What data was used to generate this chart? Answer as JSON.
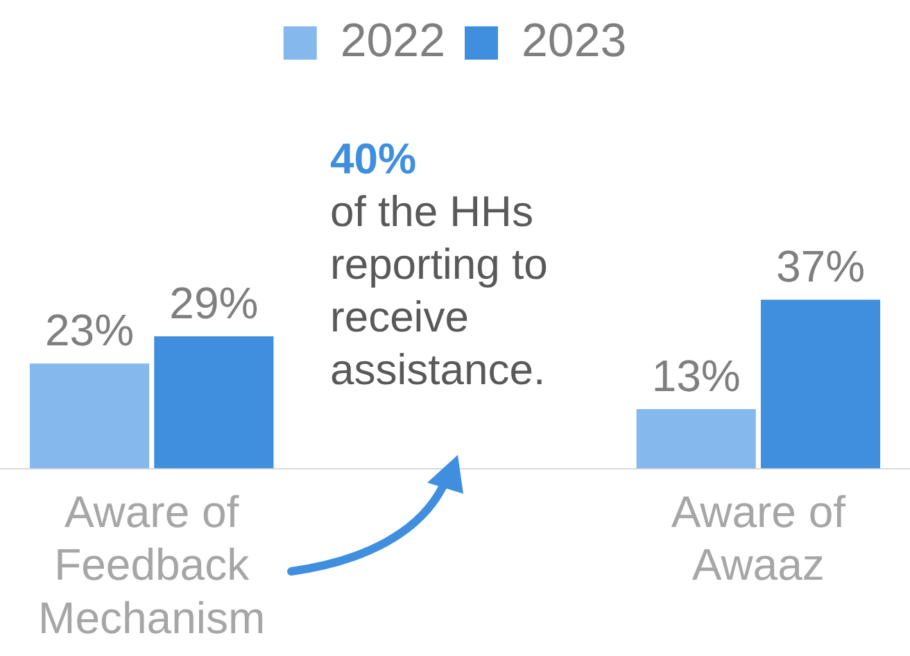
{
  "chart_data": {
    "type": "bar",
    "categories": [
      "Aware of Feedback Mechanism",
      null,
      "Aware of Awaaz"
    ],
    "series": [
      {
        "name": "2022",
        "color": "#85b8ec",
        "values": [
          23,
          null,
          13
        ],
        "value_labels": [
          "23%",
          null,
          "13%"
        ]
      },
      {
        "name": "2023",
        "color": "#3f8fde",
        "values": [
          29,
          null,
          37
        ],
        "value_labels": [
          "29%",
          null,
          "37%"
        ]
      }
    ],
    "legend": "top",
    "annotations": [
      "40%",
      "of the HHs reporting to receive assistance."
    ]
  }
}
